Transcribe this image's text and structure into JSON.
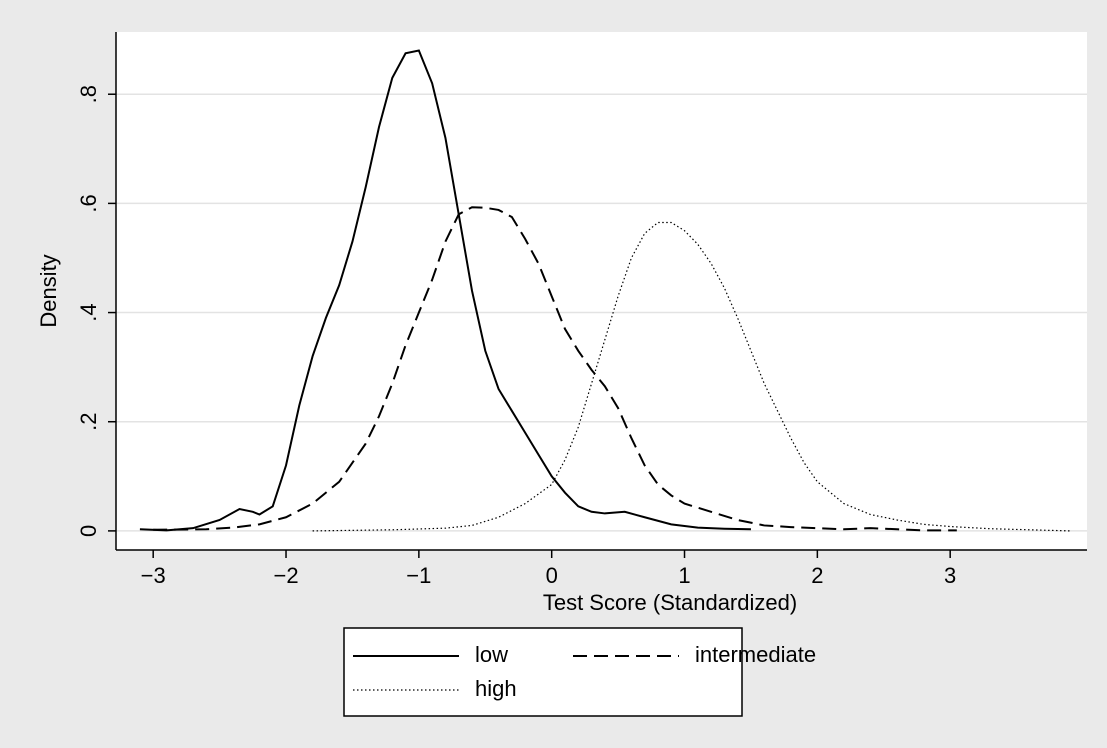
{
  "chart_data": {
    "type": "line",
    "x_label": "Test Score (Standardized)",
    "y_label": "Density",
    "xlim": [
      -3.28,
      4.03
    ],
    "ylim": [
      -0.035,
      0.914
    ],
    "xticks": [
      {
        "value": -3,
        "label": "−3"
      },
      {
        "value": -2,
        "label": "−2"
      },
      {
        "value": -1,
        "label": "−1"
      },
      0,
      1,
      2,
      3
    ],
    "yticks": [
      0,
      {
        "value": 0.2,
        "label": ".2"
      },
      {
        "value": 0.4,
        "label": ".4"
      },
      {
        "value": 0.6,
        "label": ".6"
      },
      {
        "value": 0.8,
        "label": ".8"
      }
    ],
    "grid": true,
    "legend": "bottom",
    "series": [
      {
        "name": "low",
        "color": "#000000",
        "style": "solid",
        "x": [
          -3.1,
          -2.9,
          -2.7,
          -2.5,
          -2.35,
          -2.25,
          -2.2,
          -2.1,
          -2.0,
          -1.9,
          -1.8,
          -1.7,
          -1.6,
          -1.5,
          -1.4,
          -1.3,
          -1.2,
          -1.1,
          -1.0,
          -0.9,
          -0.8,
          -0.7,
          -0.6,
          -0.5,
          -0.4,
          -0.3,
          -0.2,
          -0.1,
          0,
          0.1,
          0.2,
          0.3,
          0.4,
          0.55,
          0.7,
          0.9,
          1.1,
          1.3,
          1.5
        ],
        "values": [
          0.003,
          0.001,
          0.005,
          0.02,
          0.04,
          0.035,
          0.03,
          0.045,
          0.12,
          0.23,
          0.32,
          0.39,
          0.45,
          0.53,
          0.63,
          0.74,
          0.83,
          0.875,
          0.88,
          0.82,
          0.72,
          0.58,
          0.44,
          0.33,
          0.26,
          0.22,
          0.18,
          0.14,
          0.1,
          0.07,
          0.045,
          0.035,
          0.032,
          0.035,
          0.025,
          0.012,
          0.006,
          0.004,
          0.003
        ]
      },
      {
        "name": "intermediate",
        "color": "#000000",
        "style": "dashed",
        "x": [
          -3.0,
          -2.6,
          -2.4,
          -2.2,
          -2.0,
          -1.8,
          -1.6,
          -1.4,
          -1.3,
          -1.2,
          -1.1,
          -1.0,
          -0.9,
          -0.8,
          -0.7,
          -0.6,
          -0.5,
          -0.4,
          -0.3,
          -0.2,
          -0.1,
          0,
          0.1,
          0.2,
          0.3,
          0.4,
          0.5,
          0.6,
          0.7,
          0.8,
          0.9,
          1.0,
          1.2,
          1.4,
          1.6,
          1.8,
          2.0,
          2.2,
          2.4,
          2.6,
          2.8,
          3.05
        ],
        "values": [
          0.002,
          0.003,
          0.006,
          0.012,
          0.025,
          0.05,
          0.09,
          0.16,
          0.21,
          0.27,
          0.34,
          0.4,
          0.46,
          0.53,
          0.58,
          0.593,
          0.592,
          0.588,
          0.575,
          0.535,
          0.49,
          0.43,
          0.37,
          0.33,
          0.295,
          0.265,
          0.225,
          0.17,
          0.12,
          0.085,
          0.065,
          0.05,
          0.035,
          0.02,
          0.01,
          0.007,
          0.005,
          0.003,
          0.005,
          0.003,
          0.001,
          0.001
        ]
      },
      {
        "name": "high",
        "color": "#000000",
        "style": "dotted",
        "x": [
          -1.8,
          -1.2,
          -0.8,
          -0.6,
          -0.4,
          -0.2,
          0,
          0.1,
          0.2,
          0.3,
          0.4,
          0.5,
          0.6,
          0.7,
          0.8,
          0.9,
          1.0,
          1.1,
          1.2,
          1.3,
          1.4,
          1.5,
          1.6,
          1.7,
          1.8,
          1.9,
          2.0,
          2.2,
          2.4,
          2.6,
          2.8,
          3.0,
          3.3,
          3.6,
          3.9
        ],
        "values": [
          0.0,
          0.002,
          0.005,
          0.01,
          0.025,
          0.05,
          0.085,
          0.13,
          0.19,
          0.27,
          0.35,
          0.43,
          0.5,
          0.545,
          0.565,
          0.565,
          0.55,
          0.525,
          0.49,
          0.445,
          0.39,
          0.33,
          0.27,
          0.22,
          0.17,
          0.125,
          0.09,
          0.05,
          0.03,
          0.02,
          0.012,
          0.008,
          0.004,
          0.002,
          0.0
        ]
      }
    ]
  }
}
